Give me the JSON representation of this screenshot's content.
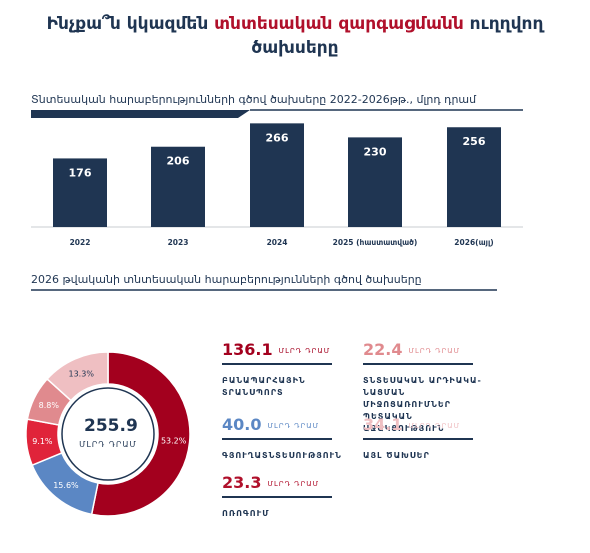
{
  "title": {
    "line1_pre": "Ինչքա՞ն կկազմեն ",
    "line1_highlight": "տնտեսական զարգացմանն",
    "line1_post": " ուղղվող",
    "line2": "ծախսերը"
  },
  "section1_label": "Տնտեսական հարաբերությունների գծով ծախսերը 2022-2026թթ., մլրդ դրամ",
  "section2_label": "2026 թվականի տնտեսական հարաբերությունների գծով ծախսերը",
  "colors": {
    "navy": "#1f3552",
    "crimson": "#a3001e",
    "blue": "#5b87c4",
    "red": "#e0243a",
    "salmon": "#e08a8e",
    "pink": "#efbfc2"
  },
  "chart_data": [
    {
      "type": "bar",
      "categories": [
        "2022",
        "2023",
        "2024",
        "2025 (հաստատված)",
        "2026(այլ)"
      ],
      "values": [
        176,
        206,
        266,
        230,
        256
      ],
      "ylim": [
        0,
        290
      ]
    },
    {
      "type": "pie",
      "donut": true,
      "center_value": "255.9",
      "center_unit": "ՄԼՐԴ ԴՐԱՄ",
      "slices": [
        {
          "value": 53.2,
          "label": "53.2%",
          "color": "#a3001e"
        },
        {
          "value": 15.6,
          "label": "15.6%",
          "color": "#5b87c4"
        },
        {
          "value": 9.1,
          "label": "9.1%",
          "color": "#e0243a"
        },
        {
          "value": 8.8,
          "label": "8.8%",
          "color": "#e08a8e"
        },
        {
          "value": 13.3,
          "label": "13.3%",
          "color": "#efbfc2"
        }
      ]
    }
  ],
  "stats": {
    "s1": {
      "num": "136.1",
      "unit": "ՄԼՐԴ ԴՐԱՄ",
      "label": "ԲԱՆԱՊԱՐՀԱՅԻՆ ՏՐԱՆՍՊՈՐՏ"
    },
    "s2": {
      "num": "40.0",
      "unit": "ՄԼՐԴ ԴՐԱՄ",
      "label": "ԳՅՈՒՂԱՏՆՏԵՍՈՒԹՅՈՒՆ"
    },
    "s3": {
      "num": "23.3",
      "unit": "ՄԼՐԴ ԴՐԱՄ",
      "label": "ՈՌՈԳՈՒՄ"
    },
    "s4": {
      "num": "22.4",
      "unit": "ՄԼՐԴ ԴՐԱՄ",
      "label": "ՏՆՏԵՍԱԿԱՆ ԱՐԴԻԱԿԱ-ՆԱՑՄԱՆ ՄԻՋՈՑԱՌՈՒՄՆԵՐ ՊԵՏԱԿԱՆ ԱՋԱԿՑՈՒԹՅՈՒՆ"
    },
    "s5": {
      "num": "34.1",
      "unit": "ՄԼՐԴ ԴՐԱՄ",
      "label": "ԱՅԼ ԾԱԽՍԵՐ"
    }
  }
}
